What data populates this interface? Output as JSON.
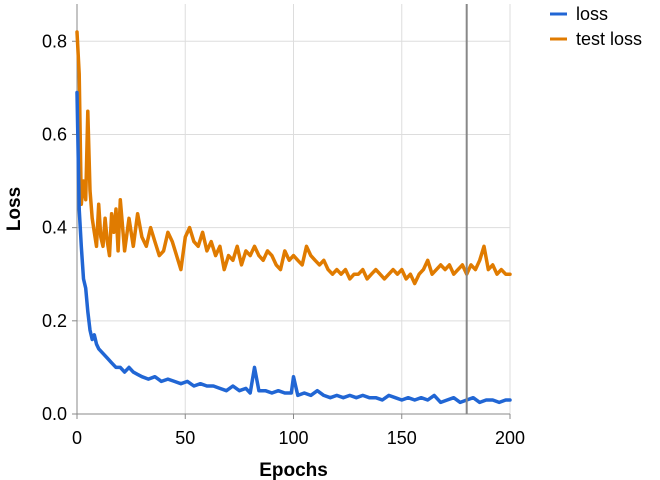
{
  "chart_data": {
    "type": "line",
    "xlabel": "Epochs",
    "ylabel": "Loss",
    "xlim": [
      0,
      200
    ],
    "ylim": [
      0,
      0.88
    ],
    "xticks": [
      0,
      50,
      100,
      150,
      200
    ],
    "yticks": [
      0.0,
      0.2,
      0.4,
      0.6,
      0.8
    ],
    "xtick_labels": [
      "0",
      "50",
      "100",
      "150",
      "200"
    ],
    "ytick_labels": [
      "0.0",
      "0.2",
      "0.4",
      "0.6",
      "0.8"
    ],
    "grid": true,
    "legend_position": "top-right outside",
    "vertical_marker_x": 180,
    "series": [
      {
        "name": "loss",
        "color": "#2166d4",
        "x": [
          0,
          1,
          2,
          3,
          4,
          5,
          6,
          7,
          8,
          9,
          10,
          12,
          14,
          16,
          18,
          20,
          22,
          24,
          26,
          28,
          30,
          33,
          36,
          39,
          42,
          45,
          48,
          51,
          54,
          57,
          60,
          63,
          66,
          69,
          72,
          75,
          78,
          80,
          82,
          84,
          87,
          90,
          93,
          96,
          99,
          100,
          102,
          105,
          108,
          111,
          114,
          117,
          120,
          123,
          126,
          129,
          132,
          135,
          138,
          141,
          144,
          147,
          150,
          153,
          156,
          159,
          162,
          165,
          168,
          171,
          174,
          177,
          180,
          183,
          186,
          189,
          192,
          195,
          198,
          200
        ],
        "y": [
          0.69,
          0.44,
          0.36,
          0.29,
          0.27,
          0.22,
          0.18,
          0.16,
          0.17,
          0.15,
          0.14,
          0.13,
          0.12,
          0.11,
          0.1,
          0.1,
          0.09,
          0.1,
          0.09,
          0.085,
          0.08,
          0.075,
          0.08,
          0.07,
          0.075,
          0.07,
          0.065,
          0.07,
          0.06,
          0.065,
          0.06,
          0.06,
          0.055,
          0.05,
          0.06,
          0.05,
          0.055,
          0.045,
          0.1,
          0.05,
          0.05,
          0.045,
          0.05,
          0.045,
          0.045,
          0.08,
          0.04,
          0.045,
          0.04,
          0.05,
          0.04,
          0.035,
          0.04,
          0.035,
          0.04,
          0.035,
          0.04,
          0.035,
          0.035,
          0.03,
          0.04,
          0.035,
          0.03,
          0.035,
          0.03,
          0.035,
          0.03,
          0.04,
          0.025,
          0.03,
          0.035,
          0.025,
          0.03,
          0.035,
          0.025,
          0.03,
          0.03,
          0.025,
          0.03,
          0.03
        ]
      },
      {
        "name": "test loss",
        "color": "#e07b00",
        "x": [
          0,
          1,
          2,
          3,
          4,
          5,
          6,
          7,
          8,
          9,
          10,
          11,
          12,
          13,
          14,
          15,
          16,
          17,
          18,
          19,
          20,
          22,
          24,
          26,
          28,
          30,
          32,
          34,
          36,
          38,
          40,
          42,
          44,
          46,
          48,
          50,
          52,
          54,
          56,
          58,
          60,
          62,
          64,
          66,
          68,
          70,
          72,
          74,
          76,
          78,
          80,
          82,
          84,
          86,
          88,
          90,
          92,
          94,
          96,
          98,
          100,
          102,
          104,
          106,
          108,
          110,
          112,
          114,
          116,
          118,
          120,
          122,
          124,
          126,
          128,
          130,
          132,
          134,
          136,
          138,
          140,
          142,
          144,
          146,
          148,
          150,
          152,
          154,
          156,
          158,
          160,
          162,
          164,
          166,
          168,
          170,
          172,
          174,
          176,
          178,
          180,
          182,
          184,
          186,
          188,
          190,
          192,
          194,
          196,
          198,
          200
        ],
        "y": [
          0.82,
          0.73,
          0.45,
          0.5,
          0.46,
          0.65,
          0.48,
          0.42,
          0.39,
          0.36,
          0.45,
          0.38,
          0.36,
          0.42,
          0.37,
          0.34,
          0.43,
          0.39,
          0.44,
          0.35,
          0.46,
          0.35,
          0.42,
          0.36,
          0.43,
          0.38,
          0.36,
          0.4,
          0.37,
          0.34,
          0.35,
          0.39,
          0.37,
          0.34,
          0.31,
          0.38,
          0.4,
          0.37,
          0.36,
          0.39,
          0.35,
          0.37,
          0.34,
          0.36,
          0.31,
          0.34,
          0.33,
          0.36,
          0.32,
          0.35,
          0.34,
          0.36,
          0.34,
          0.33,
          0.35,
          0.34,
          0.32,
          0.31,
          0.35,
          0.33,
          0.34,
          0.33,
          0.32,
          0.36,
          0.34,
          0.33,
          0.32,
          0.33,
          0.31,
          0.3,
          0.31,
          0.3,
          0.31,
          0.29,
          0.3,
          0.3,
          0.31,
          0.29,
          0.3,
          0.31,
          0.3,
          0.29,
          0.3,
          0.31,
          0.3,
          0.31,
          0.29,
          0.3,
          0.28,
          0.3,
          0.31,
          0.33,
          0.3,
          0.31,
          0.32,
          0.31,
          0.32,
          0.3,
          0.31,
          0.32,
          0.3,
          0.32,
          0.31,
          0.33,
          0.36,
          0.31,
          0.32,
          0.3,
          0.31,
          0.3,
          0.3
        ]
      }
    ]
  }
}
